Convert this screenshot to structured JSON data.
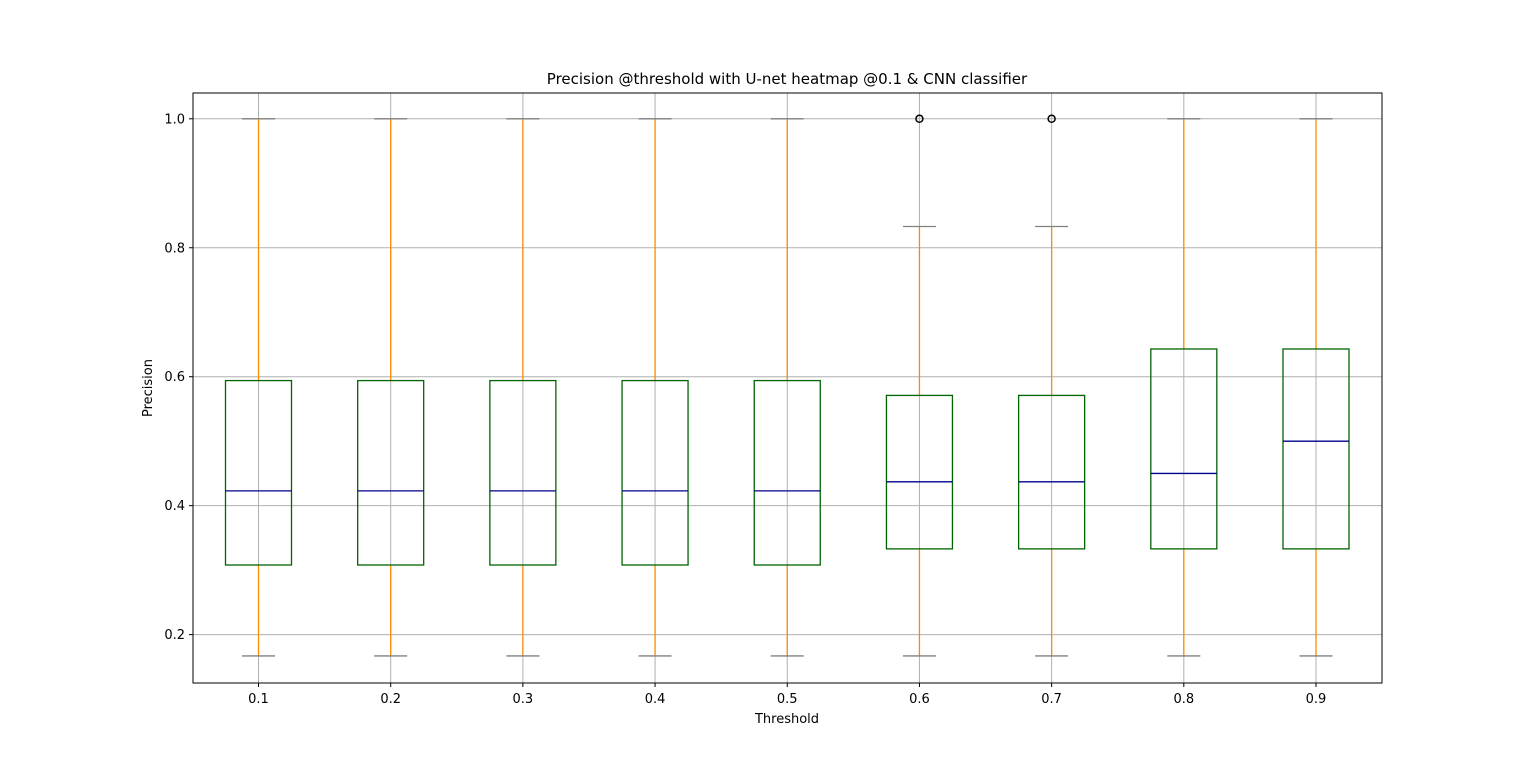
{
  "chart_data": {
    "type": "box",
    "title": "Precision @threshold with U-net heatmap @0.1 & CNN classifier",
    "xlabel": "Threshold",
    "ylabel": "Precision",
    "categories": [
      "0.1",
      "0.2",
      "0.3",
      "0.4",
      "0.5",
      "0.6",
      "0.7",
      "0.8",
      "0.9"
    ],
    "ylim": [
      0.125,
      1.04
    ],
    "yticks": [
      "0.2",
      "0.4",
      "0.6",
      "0.8",
      "1.0"
    ],
    "grid": true,
    "boxes": [
      {
        "category": "0.1",
        "whisker_low": 0.167,
        "q1": 0.308,
        "median": 0.423,
        "q3": 0.594,
        "whisker_high": 1.0,
        "outliers": []
      },
      {
        "category": "0.2",
        "whisker_low": 0.167,
        "q1": 0.308,
        "median": 0.423,
        "q3": 0.594,
        "whisker_high": 1.0,
        "outliers": []
      },
      {
        "category": "0.3",
        "whisker_low": 0.167,
        "q1": 0.308,
        "median": 0.423,
        "q3": 0.594,
        "whisker_high": 1.0,
        "outliers": []
      },
      {
        "category": "0.4",
        "whisker_low": 0.167,
        "q1": 0.308,
        "median": 0.423,
        "q3": 0.594,
        "whisker_high": 1.0,
        "outliers": []
      },
      {
        "category": "0.5",
        "whisker_low": 0.167,
        "q1": 0.308,
        "median": 0.423,
        "q3": 0.594,
        "whisker_high": 1.0,
        "outliers": []
      },
      {
        "category": "0.6",
        "whisker_low": 0.167,
        "q1": 0.333,
        "median": 0.437,
        "q3": 0.571,
        "whisker_high": 0.833,
        "outliers": [
          1.0
        ]
      },
      {
        "category": "0.7",
        "whisker_low": 0.167,
        "q1": 0.333,
        "median": 0.437,
        "q3": 0.571,
        "whisker_high": 0.833,
        "outliers": [
          1.0
        ]
      },
      {
        "category": "0.8",
        "whisker_low": 0.167,
        "q1": 0.333,
        "median": 0.45,
        "q3": 0.643,
        "whisker_high": 1.0,
        "outliers": []
      },
      {
        "category": "0.9",
        "whisker_low": 0.167,
        "q1": 0.333,
        "median": 0.5,
        "q3": 0.643,
        "whisker_high": 1.0,
        "outliers": []
      }
    ],
    "colors": {
      "box": "#006400",
      "median": "#00008b",
      "whisker": "#ff8c00",
      "cap": "#808080",
      "grid": "#b0b0b0",
      "outlier": "#000000"
    }
  }
}
